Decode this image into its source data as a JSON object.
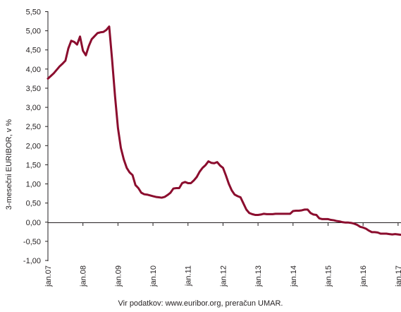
{
  "source_note": "Vir podatkov: www.euribor.org, preračun UMAR.",
  "chart_data": {
    "type": "line",
    "title": "",
    "xlabel": "",
    "ylabel": "3-mesečni EURIBOR, v %",
    "ylim": [
      -1.0,
      5.5
    ],
    "y_ticks": [
      "5,50",
      "5,00",
      "4,50",
      "4,00",
      "3,50",
      "3,00",
      "2,50",
      "2,00",
      "1,50",
      "1,00",
      "0,50",
      "0,00",
      "-0,50",
      "-1,00"
    ],
    "y_tick_values": [
      5.5,
      5.0,
      4.5,
      4.0,
      3.5,
      3.0,
      2.5,
      2.0,
      1.5,
      1.0,
      0.5,
      0.0,
      -0.5,
      -1.0
    ],
    "x_ticks": [
      "jan.07",
      "jan.08",
      "jan.09",
      "jan.10",
      "jan.11",
      "jan.12",
      "jan.13",
      "jan.14",
      "jan.15",
      "jan.16",
      "jan.17"
    ],
    "grid": false,
    "line_color": "#8b0d2e",
    "series": [
      {
        "values": [
          3.75,
          3.82,
          3.89,
          3.98,
          4.07,
          4.14,
          4.22,
          4.54,
          4.74,
          4.71,
          4.64,
          4.85,
          4.48,
          4.36,
          4.6,
          4.78,
          4.86,
          4.94,
          4.96,
          4.97,
          5.02,
          5.11,
          4.24,
          3.29,
          2.46,
          1.94,
          1.64,
          1.42,
          1.3,
          1.23,
          0.97,
          0.89,
          0.77,
          0.73,
          0.72,
          0.7,
          0.68,
          0.66,
          0.65,
          0.64,
          0.66,
          0.71,
          0.77,
          0.88,
          0.89,
          0.89,
          1.02,
          1.05,
          1.02,
          1.02,
          1.09,
          1.18,
          1.32,
          1.42,
          1.49,
          1.59,
          1.55,
          1.54,
          1.57,
          1.48,
          1.42,
          1.22,
          1.0,
          0.83,
          0.72,
          0.68,
          0.65,
          0.49,
          0.33,
          0.24,
          0.21,
          0.19,
          0.19,
          0.2,
          0.22,
          0.21,
          0.21,
          0.21,
          0.22,
          0.22,
          0.22,
          0.22,
          0.22,
          0.22,
          0.29,
          0.3,
          0.3,
          0.31,
          0.33,
          0.33,
          0.24,
          0.2,
          0.19,
          0.1,
          0.08,
          0.08,
          0.08,
          0.06,
          0.05,
          0.03,
          0.02,
          0.0,
          -0.01,
          -0.01,
          -0.02,
          -0.04,
          -0.07,
          -0.12,
          -0.14,
          -0.17,
          -0.22,
          -0.26,
          -0.26,
          -0.27,
          -0.3,
          -0.3,
          -0.3,
          -0.31,
          -0.32,
          -0.31,
          -0.32,
          -0.33
        ]
      }
    ]
  }
}
